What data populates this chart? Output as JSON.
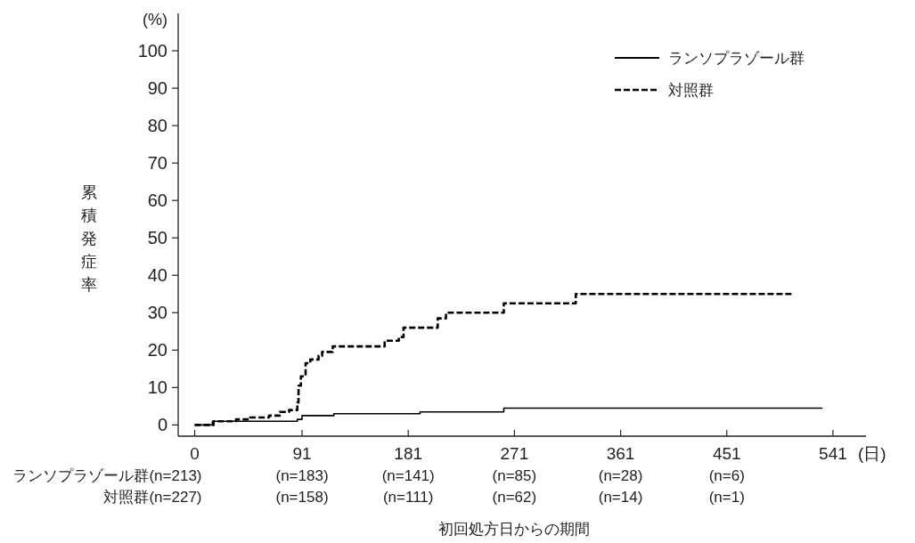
{
  "chart_data": {
    "type": "step",
    "xlabel": "初回処方日からの期間",
    "ylabel": "累積発症率",
    "xlim": [
      -14,
      569
    ],
    "ylim": [
      -3,
      110
    ],
    "xticks": [
      0,
      91,
      181,
      271,
      361,
      451,
      541
    ],
    "yticks": [
      0,
      10,
      20,
      30,
      40,
      50,
      60,
      70,
      80,
      90,
      100
    ],
    "grid": false,
    "legend": "top right",
    "annotations": [
      "(%)",
      "(日)",
      "ランソプラゾール群(n=213)",
      "(n=183)",
      "(n=141)",
      "(n=85)",
      "(n=28)",
      "(n=6)",
      "対照群(n=227)",
      "(n=158)",
      "(n=111)",
      "(n=62)",
      "(n=14)",
      "(n=1)"
    ],
    "series": [
      {
        "name": "ランソプラゾール群",
        "color": "#000000",
        "line_style": "solid",
        "x": [
          0,
          15,
          87,
          91,
          118,
          191,
          262,
          532
        ],
        "values": [
          0,
          1,
          1.5,
          2.5,
          3,
          3.5,
          4.5,
          4.5
        ]
      },
      {
        "name": "対照群",
        "color": "#000000",
        "line_style": "dashed",
        "x": [
          0,
          16,
          35,
          47,
          63,
          72,
          80,
          87,
          88,
          90,
          94,
          98,
          105,
          108,
          117,
          161,
          173,
          177,
          206,
          213,
          262,
          323,
          507
        ],
        "values": [
          0,
          1,
          1.5,
          2,
          2.5,
          3.5,
          4,
          6,
          10.5,
          13,
          16.5,
          17.5,
          18.5,
          19.5,
          21,
          22.5,
          23.5,
          26,
          28.5,
          30,
          32.5,
          35,
          35
        ]
      }
    ]
  }
}
